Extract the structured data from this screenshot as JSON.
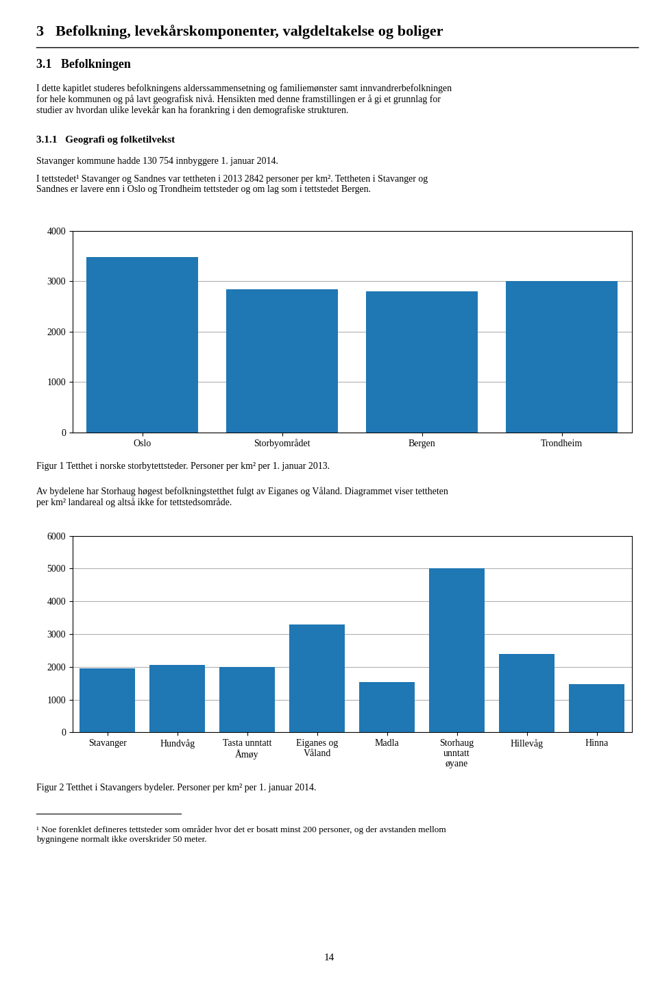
{
  "title": "3   Befolkning, levekårskomponenter, valgdeltakelse og boliger",
  "annotations": [
    "3.1   Befolkningen",
    "I dette kapitlet studeres befolkningens alderssammensetning og familiemønster samt innvandrerbefolkningen\nfor hele kommunen og på lavt geografisk nivå. Hensikten med denne framstillingen er å gi et grunnlag for\nstudier av hvordan ulike levekår kan ha forankring i den demografiske strukturen.",
    "3.1.1   Geografi og folketilvekst",
    "Stavanger kommune hadde 130 754 innbyggere 1. januar 2014.",
    "I tettstedet¹ Stavanger og Sandnes var tettheten i 2013 2842 personer per km². Tettheten i Stavanger og\nSandnes er lavere enn i Oslo og Trondheim tettsteder og om lag som i tettstedet Bergen.",
    "Av bydelene har Storhaug høgest befolkningstetthet fulgt av Eiganes og Våland. Diagrammet viser tettheten\nper km² landareal og altså ikke for tettstedsområde.",
    "¹ Noe forenklet defineres tettsteder som områder hvor det er bosatt minst 200 personer, og der avstanden mellom\nbygningene normalt ikke overskrider 50 meter.",
    "14"
  ],
  "chart_data": [
    {
      "type": "bar",
      "title": "Figur 1 Tetthet i norske storbytettsteder. Personer per km² per 1. januar 2013.",
      "categories": [
        "Oslo",
        "Storbyområdet",
        "Bergen",
        "Trondheim"
      ],
      "values": [
        3480,
        2840,
        2800,
        3000
      ],
      "ylim": [
        0,
        4000
      ],
      "yticks": [
        0,
        1000,
        2000,
        3000,
        4000
      ],
      "grid": true
    },
    {
      "type": "bar",
      "title": "Figur 2 Tetthet i Stavangers bydeler. Personer per km² per 1. januar 2014.",
      "categories": [
        "Stavanger",
        "Hundvåg",
        "Tasta unntatt\nÅmøy",
        "Eiganes og\nVåland",
        "Madla",
        "Storhaug\nunntatt\nøyane",
        "Hillevåg",
        "Hinna"
      ],
      "values": [
        1950,
        2050,
        2000,
        3300,
        1530,
        5000,
        2400,
        1470
      ],
      "ylim": [
        0,
        6000
      ],
      "yticks": [
        0,
        1000,
        2000,
        3000,
        4000,
        5000,
        6000
      ],
      "grid": true
    }
  ]
}
